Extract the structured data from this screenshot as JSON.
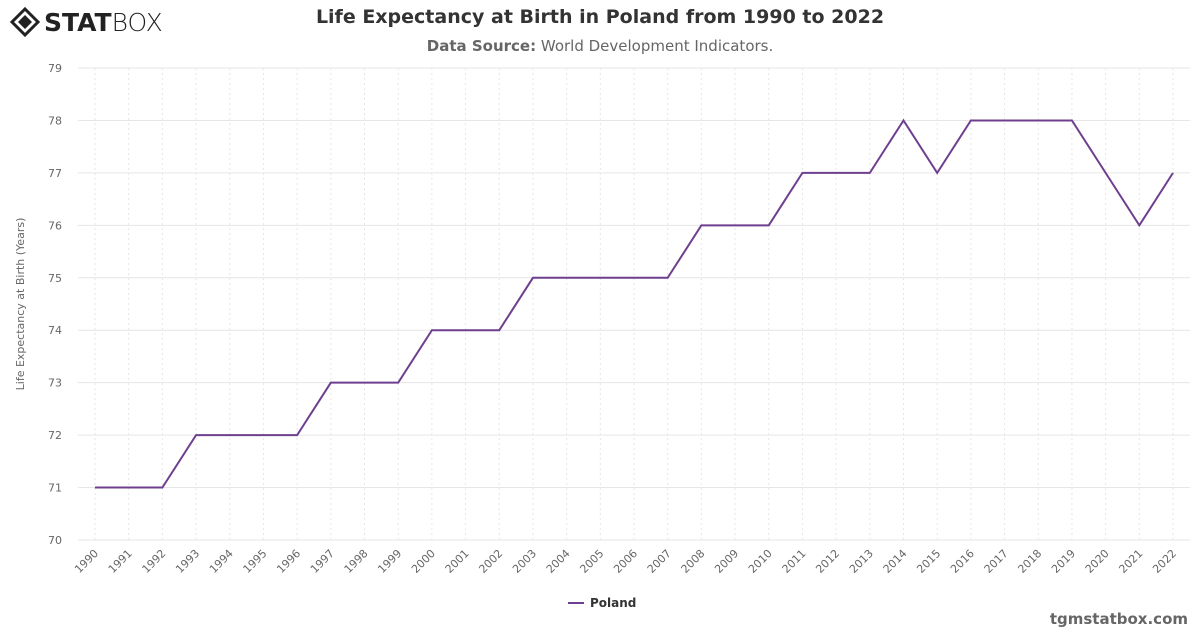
{
  "logo": {
    "bold": "STAT",
    "light": "BOX",
    "icon": "diamond-logo-icon"
  },
  "header": {
    "title": "Life Expectancy at Birth in Poland from 1990 to 2022",
    "source_label": "Data Source:",
    "source_value": "World Development Indicators."
  },
  "credit": "tgmstatbox.com",
  "chart_data": {
    "type": "line",
    "title": "Life Expectancy at Birth in Poland from 1990 to 2022",
    "xlabel": "",
    "ylabel": "Life Expectancy at Birth (Years)",
    "ylim": [
      70,
      79
    ],
    "yticks": [
      70,
      71,
      72,
      73,
      74,
      75,
      76,
      77,
      78,
      79
    ],
    "grid": true,
    "legend": "bottom-center",
    "color": "#6f3f8f",
    "categories": [
      "1990",
      "1991",
      "1992",
      "1993",
      "1994",
      "1995",
      "1996",
      "1997",
      "1998",
      "1999",
      "2000",
      "2001",
      "2002",
      "2003",
      "2004",
      "2005",
      "2006",
      "2007",
      "2008",
      "2009",
      "2010",
      "2011",
      "2012",
      "2013",
      "2014",
      "2015",
      "2016",
      "2017",
      "2018",
      "2019",
      "2020",
      "2021",
      "2022"
    ],
    "series": [
      {
        "name": "Poland",
        "values": [
          71,
          71,
          71,
          72,
          72,
          72,
          72,
          73,
          73,
          73,
          74,
          74,
          74,
          75,
          75,
          75,
          75,
          75,
          76,
          76,
          76,
          77,
          77,
          77,
          78,
          77,
          78,
          78,
          78,
          78,
          77,
          76,
          77
        ]
      }
    ]
  }
}
